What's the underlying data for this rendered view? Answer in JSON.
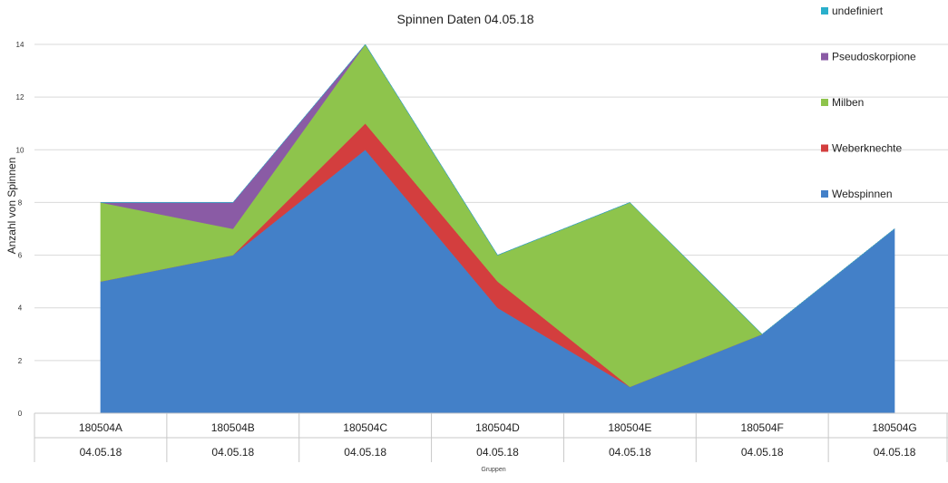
{
  "chart_data": {
    "type": "area",
    "stacked": true,
    "title": "Spinnen Daten 04.05.18",
    "xlabel": "Gruppen",
    "ylabel": "Anzahl von Spinnen",
    "ylim": [
      0,
      14
    ],
    "yticks": [
      "0",
      "2",
      "4",
      "6",
      "8",
      "10",
      "12",
      "14"
    ],
    "grid": true,
    "legend_position": "right",
    "categories": [
      "180504A",
      "180504B",
      "180504C",
      "180504D",
      "180504E",
      "180504F",
      "180504G"
    ],
    "category_dates": [
      "04.05.18",
      "04.05.18",
      "04.05.18",
      "04.05.18",
      "04.05.18",
      "04.05.18",
      "04.05.18"
    ],
    "series": [
      {
        "name": "Webspinnen",
        "color": "#4380C8",
        "values": [
          5,
          6,
          10,
          4,
          1,
          3,
          7
        ]
      },
      {
        "name": "Weberknechte",
        "color": "#D33E3E",
        "values": [
          0,
          0,
          1,
          1,
          0,
          0,
          0
        ]
      },
      {
        "name": "Milben",
        "color": "#8EC44C",
        "values": [
          3,
          1,
          3,
          1,
          7,
          0,
          0
        ]
      },
      {
        "name": "Pseudoskorpione",
        "color": "#8A5BA5",
        "values": [
          0,
          1,
          0,
          0,
          0,
          0,
          0
        ]
      },
      {
        "name": "undefiniert",
        "color": "#2AAFCB",
        "values": [
          0,
          0,
          0,
          0,
          0,
          0,
          0
        ]
      }
    ]
  }
}
